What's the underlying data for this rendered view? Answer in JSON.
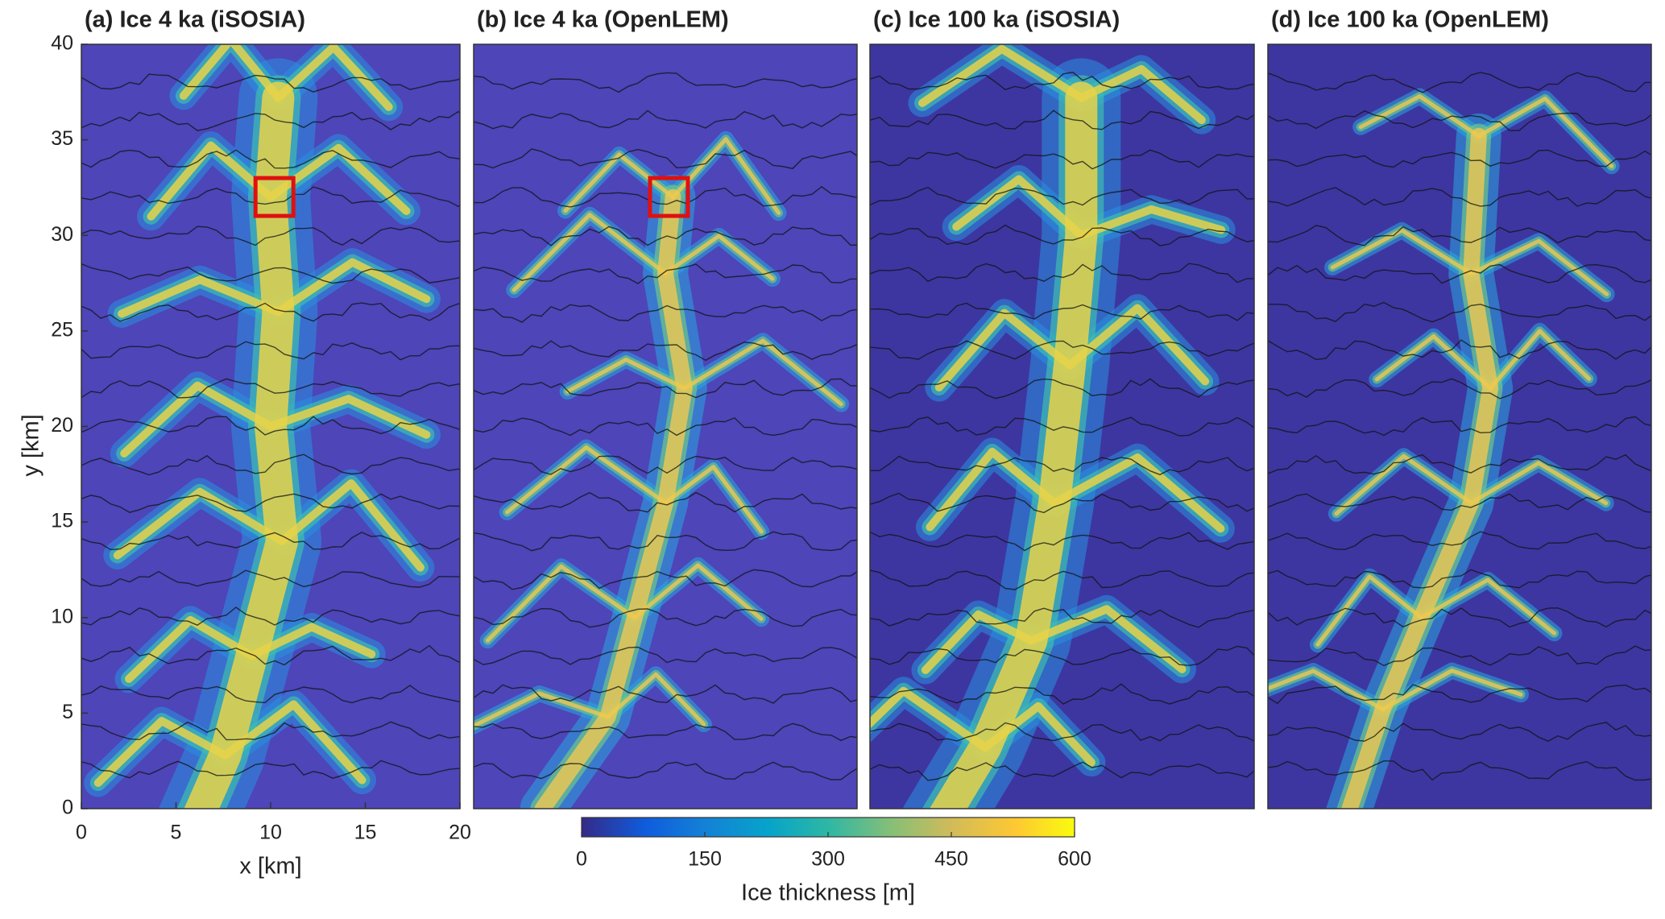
{
  "panels": [
    {
      "title": "(a) Ice 4 ka (iSOSIA)"
    },
    {
      "title": "(b) Ice 4 ka (OpenLEM)"
    },
    {
      "title": "(c) Ice 100 ka (iSOSIA)"
    },
    {
      "title": "(d) Ice 100 ka (OpenLEM)"
    }
  ],
  "axes": {
    "xlabel": "x [km]",
    "ylabel": "y [km]",
    "xlim": [
      0,
      20
    ],
    "ylim": [
      0,
      40
    ],
    "xticks": [
      0,
      5,
      10,
      15,
      20
    ],
    "yticks": [
      0,
      5,
      10,
      15,
      20,
      25,
      30,
      35,
      40
    ]
  },
  "colorbar": {
    "label": "Ice thickness [m]",
    "lim": [
      0,
      600
    ],
    "ticks": [
      0,
      150,
      300,
      450,
      600
    ]
  }
}
